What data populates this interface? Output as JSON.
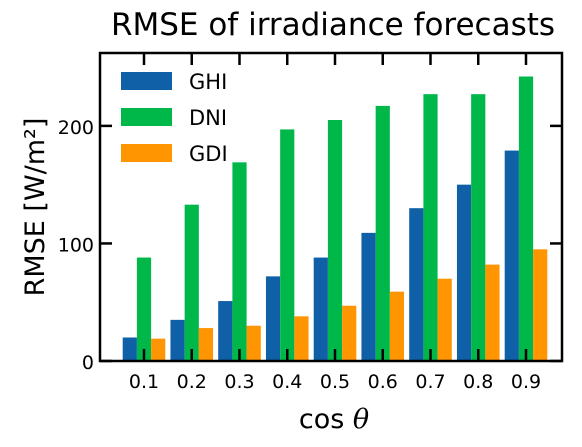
{
  "chart_data": {
    "type": "bar",
    "title": "RMSE of irradiance forecasts",
    "xlabel": "cos θ",
    "ylabel": "RMSE [W/m²]",
    "categories": [
      "0.1",
      "0.2",
      "0.3",
      "0.4",
      "0.5",
      "0.6",
      "0.7",
      "0.8",
      "0.9"
    ],
    "series": [
      {
        "name": "GHI",
        "color": "#1060a8",
        "values": [
          20,
          35,
          51,
          72,
          88,
          109,
          130,
          150,
          179
        ]
      },
      {
        "name": "DNI",
        "color": "#00b84a",
        "values": [
          88,
          133,
          169,
          197,
          205,
          217,
          227,
          227,
          242
        ]
      },
      {
        "name": "GDI",
        "color": "#ff9500",
        "values": [
          19,
          28,
          30,
          38,
          47,
          59,
          70,
          82,
          95
        ]
      }
    ],
    "yticks": [
      0,
      100,
      200
    ],
    "ylim": [
      0,
      262
    ],
    "legend": "top-left",
    "grid": false
  }
}
